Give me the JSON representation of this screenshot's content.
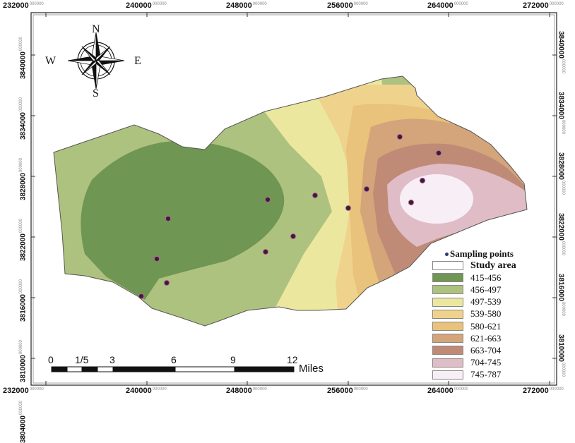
{
  "axes": {
    "x_ticks": [
      "232000",
      "240000",
      "248000",
      "256000",
      "264000",
      "272000"
    ],
    "y_ticks": [
      "3840000",
      "3834000",
      "3828000",
      "3822000",
      "3816000",
      "3810000",
      "3804000"
    ],
    "tick_suffix": "000000"
  },
  "compass": {
    "north": "N",
    "south": "S",
    "east": "E",
    "west": "W"
  },
  "scale_bar": {
    "labels": [
      "0",
      "1/5",
      "3",
      "6",
      "9",
      "12"
    ],
    "unit": "Miles"
  },
  "legend": {
    "sampling_points": "Sampling points",
    "study_area": "Study area",
    "classes": [
      {
        "label": "415-456",
        "color": "#6f9652"
      },
      {
        "label": "456-497",
        "color": "#aec27f"
      },
      {
        "label": "497-539",
        "color": "#ece79f"
      },
      {
        "label": "539-580",
        "color": "#efd38d"
      },
      {
        "label": "580-621",
        "color": "#e9c27b"
      },
      {
        "label": "621-663",
        "color": "#d4a47a"
      },
      {
        "label": "663-704",
        "color": "#bf8b77"
      },
      {
        "label": "704-745",
        "color": "#e0bcc6"
      },
      {
        "label": "745-787",
        "color": "#f8eef6"
      }
    ],
    "study_area_color": "#ffffff",
    "point_color": "#3d1b3f"
  },
  "sampling_points_count": 15
}
